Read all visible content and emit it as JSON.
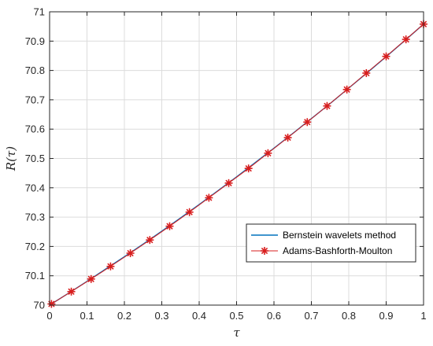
{
  "chart_data": {
    "type": "line",
    "xlabel": "τ",
    "ylabel": "R(τ)",
    "xlim": [
      0,
      1
    ],
    "ylim": [
      70,
      71
    ],
    "xticks": [
      "0",
      "0.1",
      "0.2",
      "0.3",
      "0.4",
      "0.5",
      "0.6",
      "0.7",
      "0.8",
      "0.9",
      "1"
    ],
    "yticks": [
      "70",
      "70.1",
      "70.2",
      "70.3",
      "70.4",
      "70.5",
      "70.6",
      "70.7",
      "70.8",
      "70.9",
      "71"
    ],
    "grid": true,
    "legend_position": "bottom-right",
    "series": [
      {
        "name": "Bernstein wavelets method",
        "color": "#0072bd",
        "marker": "none",
        "x": [
          0,
          0.05,
          0.1,
          0.15,
          0.2,
          0.25,
          0.3,
          0.35,
          0.4,
          0.45,
          0.5,
          0.55,
          0.6,
          0.65,
          0.7,
          0.75,
          0.8,
          0.85,
          0.9,
          0.95,
          1
        ],
        "y": [
          70.0,
          70.04,
          70.081,
          70.123,
          70.165,
          70.208,
          70.252,
          70.297,
          70.343,
          70.39,
          70.437,
          70.486,
          70.535,
          70.585,
          70.636,
          70.687,
          70.74,
          70.793,
          70.847,
          70.902,
          70.958
        ]
      },
      {
        "name": "Adams-Bashforth-Moulton",
        "color": "#d81e1e",
        "marker": "asterisk",
        "x": [
          0.005,
          0.058,
          0.111,
          0.163,
          0.216,
          0.268,
          0.321,
          0.374,
          0.426,
          0.479,
          0.532,
          0.584,
          0.637,
          0.689,
          0.742,
          0.795,
          0.847,
          0.9,
          0.953,
          1
        ],
        "y": [
          70.004,
          70.046,
          70.089,
          70.132,
          70.177,
          70.222,
          70.269,
          70.317,
          70.366,
          70.416,
          70.466,
          70.518,
          70.571,
          70.624,
          70.679,
          70.735,
          70.791,
          70.848,
          70.906,
          70.958
        ]
      }
    ]
  }
}
